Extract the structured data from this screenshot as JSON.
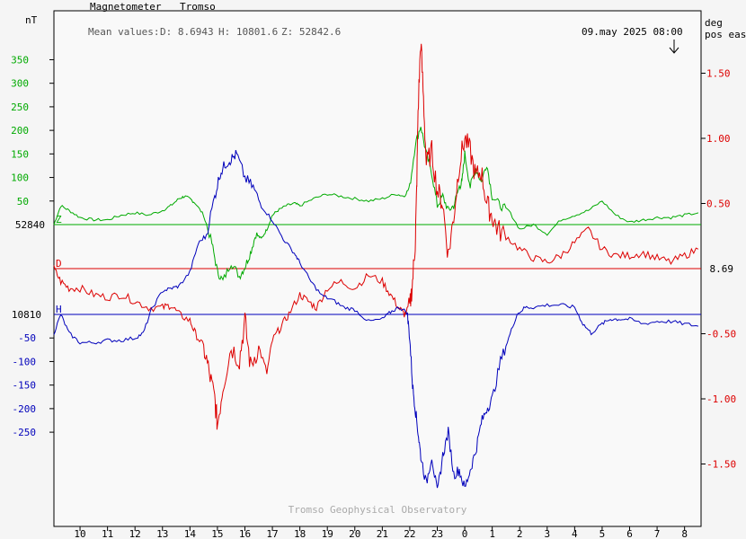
{
  "header": {
    "instrument": "Magnetometer",
    "station": "Tromso",
    "mean_values_label": "Mean values:",
    "mean_D": "D: 8.6943",
    "mean_H": "H: 10801.6",
    "mean_Z": "Z: 52842.6",
    "timestamp": "09.may 2025 08:00",
    "left_unit": "nT",
    "right_unit_1": "deg",
    "right_unit_2": "pos east",
    "credit": "Tromso Geophysical Observatory"
  },
  "colors": {
    "Z": "#00aa00",
    "D": "#dd0000",
    "H": "#0000bb",
    "axis": "#000000",
    "credit": "#aaaaaa"
  },
  "chart_data": {
    "type": "line",
    "x_unit": "hour (UT)",
    "x_ticks": [
      "10",
      "11",
      "12",
      "13",
      "14",
      "15",
      "16",
      "17",
      "18",
      "19",
      "20",
      "21",
      "22",
      "23",
      "0",
      "1",
      "2",
      "3",
      "4",
      "5",
      "6",
      "7",
      "8"
    ],
    "xlim": [
      9.05,
      32.6
    ],
    "ylim_nT": [
      -330,
      430
    ],
    "left_ticks_Z": [
      50,
      100,
      150,
      200,
      250,
      300,
      350
    ],
    "left_ticks_H": [
      -50,
      -100,
      -150,
      -200,
      -250
    ],
    "right_ticks": [
      "1.50",
      "1.00",
      "0.50",
      "-0.50",
      "-1.00",
      "-1.50"
    ],
    "right_tick_values": [
      1.5,
      1.0,
      0.5,
      -0.5,
      -1.0,
      -1.5
    ],
    "ylim_deg": [
      -2.1,
      1.84
    ],
    "baselines": {
      "Z": "52840",
      "H": "10810",
      "D": "8.69"
    },
    "series": [
      {
        "name": "Z",
        "x": [
          9.05,
          9.3,
          9.6,
          10.0,
          10.5,
          11.0,
          11.5,
          12.0,
          12.5,
          13.0,
          13.3,
          13.6,
          13.8,
          14.0,
          14.2,
          14.5,
          14.8,
          15.0,
          15.2,
          15.5,
          15.8,
          16.0,
          16.2,
          16.4,
          16.6,
          16.8,
          17.0,
          17.2,
          17.5,
          17.8,
          18.0,
          18.5,
          19.0,
          19.5,
          20.0,
          20.5,
          21.0,
          21.5,
          21.8,
          22.0,
          22.2,
          22.4,
          22.6,
          22.8,
          23.0,
          23.2,
          23.4,
          23.6,
          23.8,
          23.9,
          24.0,
          24.2,
          24.4,
          24.6,
          24.8,
          25.0,
          25.3,
          25.6,
          26.0,
          26.5,
          27.0,
          27.5,
          28.0,
          28.5,
          29.0,
          29.5,
          30.0,
          30.5,
          31.0,
          31.5,
          32.0,
          32.5
        ],
        "y": [
          0,
          40,
          30,
          15,
          10,
          10,
          20,
          25,
          20,
          30,
          40,
          55,
          60,
          55,
          45,
          20,
          -40,
          -100,
          -120,
          -80,
          -110,
          -90,
          -60,
          -20,
          -30,
          -10,
          20,
          30,
          40,
          45,
          40,
          55,
          65,
          60,
          55,
          50,
          55,
          65,
          60,
          80,
          170,
          210,
          150,
          110,
          40,
          60,
          30,
          40,
          80,
          90,
          150,
          80,
          120,
          90,
          130,
          60,
          40,
          30,
          -10,
          0,
          -20,
          10,
          20,
          30,
          50,
          20,
          5,
          10,
          15,
          15,
          20,
          25
        ]
      },
      {
        "name": "D",
        "x": [
          9.05,
          9.3,
          9.6,
          10.0,
          10.5,
          11.0,
          11.5,
          12.0,
          12.5,
          13.0,
          13.3,
          13.6,
          14.0,
          14.2,
          14.5,
          14.7,
          14.9,
          15.0,
          15.2,
          15.5,
          15.8,
          16.0,
          16.2,
          16.5,
          16.8,
          17.0,
          17.3,
          17.6,
          18.0,
          18.3,
          18.6,
          19.0,
          19.5,
          20.0,
          20.5,
          21.0,
          21.3,
          21.6,
          21.8,
          22.0,
          22.1,
          22.2,
          22.25,
          22.3,
          22.4,
          22.5,
          22.6,
          22.8,
          23.0,
          23.2,
          23.4,
          23.6,
          23.8,
          24.0,
          24.2,
          24.4,
          24.6,
          24.8,
          25.0,
          25.2,
          25.5,
          26.0,
          26.5,
          27.0,
          27.5,
          28.0,
          28.5,
          29.0,
          29.5,
          30.0,
          30.5,
          31.0,
          31.5,
          32.0,
          32.5
        ],
        "y": [
          0.0,
          -0.1,
          -0.15,
          -0.15,
          -0.2,
          -0.22,
          -0.2,
          -0.25,
          -0.3,
          -0.3,
          -0.28,
          -0.35,
          -0.4,
          -0.5,
          -0.6,
          -0.8,
          -1.0,
          -1.2,
          -0.9,
          -0.6,
          -0.7,
          -0.4,
          -0.75,
          -0.6,
          -0.8,
          -0.55,
          -0.45,
          -0.35,
          -0.2,
          -0.25,
          -0.3,
          -0.15,
          -0.1,
          -0.15,
          -0.05,
          -0.1,
          -0.2,
          -0.3,
          -0.35,
          -0.3,
          -0.1,
          0.2,
          0.6,
          1.2,
          1.75,
          1.3,
          0.8,
          0.9,
          0.6,
          0.5,
          0.1,
          0.4,
          0.8,
          1.0,
          0.9,
          0.7,
          0.75,
          0.5,
          0.4,
          0.3,
          0.25,
          0.15,
          0.08,
          0.05,
          0.1,
          0.2,
          0.3,
          0.15,
          0.1,
          0.1,
          0.12,
          0.08,
          0.05,
          0.1,
          0.15
        ]
      },
      {
        "name": "H",
        "x": [
          9.05,
          9.3,
          9.6,
          10.0,
          10.5,
          11.0,
          11.5,
          12.0,
          12.3,
          12.6,
          13.0,
          13.3,
          13.6,
          14.0,
          14.3,
          14.6,
          14.9,
          15.1,
          15.3,
          15.5,
          15.7,
          16.0,
          16.3,
          16.6,
          17.0,
          17.4,
          17.8,
          18.0,
          18.4,
          18.8,
          19.2,
          19.6,
          20.0,
          20.5,
          21.0,
          21.3,
          21.6,
          21.9,
          22.0,
          22.1,
          22.2,
          22.3,
          22.4,
          22.6,
          22.8,
          23.0,
          23.2,
          23.4,
          23.6,
          23.8,
          24.0,
          24.2,
          24.4,
          24.6,
          24.8,
          25.0,
          25.3,
          25.6,
          25.9,
          26.2,
          26.5,
          27.0,
          27.5,
          28.0,
          28.3,
          28.6,
          29.0,
          29.3,
          29.6,
          30.0,
          30.5,
          31.0,
          31.5,
          32.0,
          32.5
        ],
        "y": [
          -40,
          0,
          -40,
          -60,
          -60,
          -55,
          -55,
          -50,
          -40,
          10,
          50,
          55,
          60,
          90,
          150,
          170,
          250,
          300,
          320,
          330,
          340,
          290,
          270,
          230,
          200,
          160,
          130,
          110,
          70,
          40,
          30,
          15,
          10,
          -15,
          -10,
          5,
          15,
          5,
          -50,
          -150,
          -200,
          -250,
          -300,
          -360,
          -300,
          -380,
          -300,
          -250,
          -340,
          -330,
          -370,
          -330,
          -290,
          -230,
          -200,
          -180,
          -100,
          -50,
          0,
          15,
          15,
          20,
          20,
          15,
          -20,
          -40,
          -20,
          -10,
          -10,
          -10,
          -20,
          -15,
          -15,
          -20,
          -25
        ]
      }
    ]
  }
}
